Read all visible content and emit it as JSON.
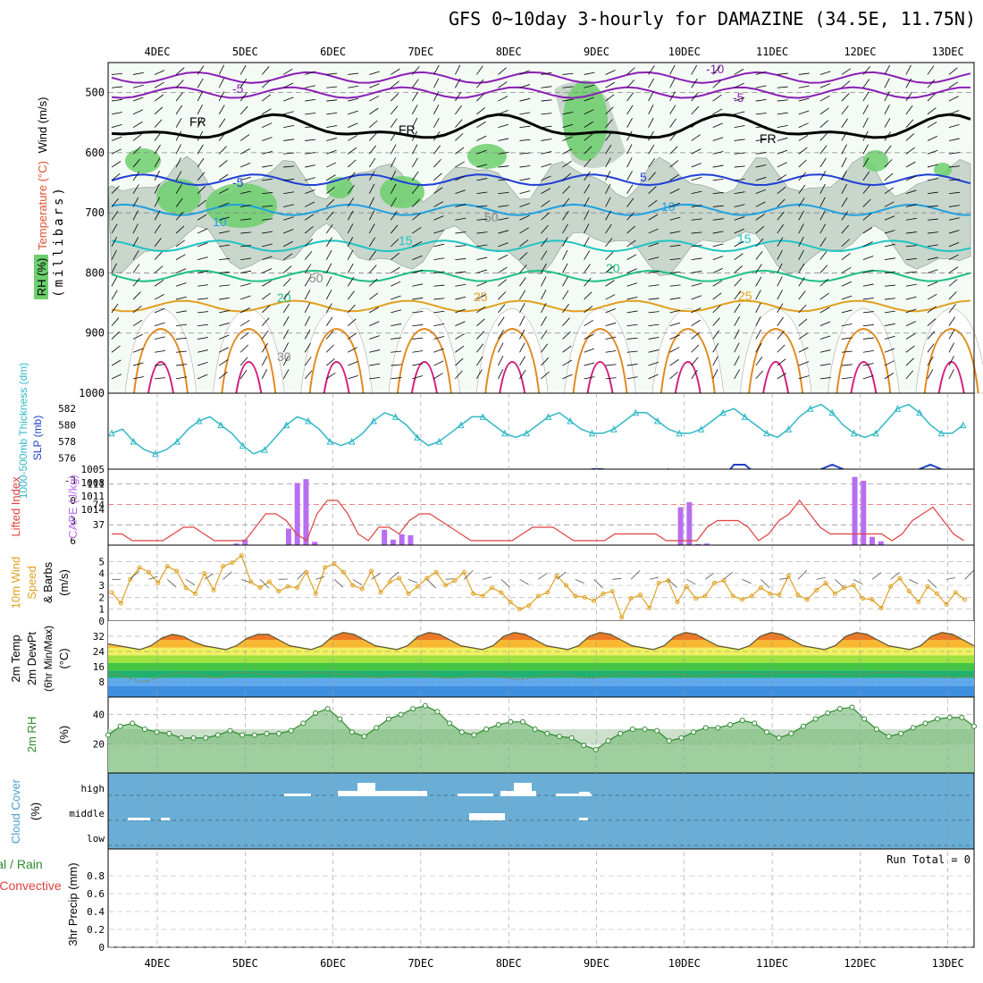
{
  "title": "GFS 0~10day 3-hourly for DAMAZINE (34.5E, 11.75N)",
  "dates": [
    "4DEC",
    "5DEC",
    "6DEC",
    "7DEC",
    "8DEC",
    "9DEC",
    "10DEC",
    "11DEC",
    "12DEC",
    "13DEC"
  ],
  "run_total": "Run Total = 0",
  "chart_data": [
    {
      "type": "heatmap",
      "panel": "upper-air",
      "ylabel": "(millibars)",
      "yticks": [
        500,
        600,
        700,
        800,
        900,
        1000
      ],
      "labels": {
        "wind": "Wind (m/s)",
        "temp": "Temperature (°C)",
        "rh": "RH (%)"
      },
      "contour_labels": [
        "-10",
        "-5",
        "FR",
        "-5",
        "10",
        "15",
        "20",
        "25",
        "50",
        "30"
      ],
      "isotherms": [
        {
          "name": "-10",
          "pressure": 475
        },
        {
          "name": "-5",
          "pressure": 500
        },
        {
          "name": "FR",
          "pressure": 560
        },
        {
          "name": "5",
          "pressure": 645
        },
        {
          "name": "10",
          "pressure": 695
        },
        {
          "name": "15",
          "pressure": 755
        },
        {
          "name": "20",
          "pressure": 805
        },
        {
          "name": "25",
          "pressure": 855
        }
      ]
    },
    {
      "type": "line",
      "panel": "slp-thickness",
      "ylabel_left": "1000-500mb Thickness (dm)",
      "ylabel_right": "SLP (mb)",
      "ticks_left": [
        "576",
        "578",
        "580",
        "582"
      ],
      "ticks_right": [
        "1005",
        "1008",
        "1011",
        "1014"
      ],
      "series": [
        {
          "name": "SLP",
          "values": [
            1008,
            1010,
            1011,
            1011,
            1014,
            1012,
            1009,
            1010,
            1010,
            1011,
            1013,
            1011,
            1008,
            1009,
            1010,
            1012,
            1013,
            1011,
            1008,
            1007,
            1010,
            1012,
            1010,
            1008,
            1006,
            1007,
            1010,
            1012,
            1011,
            1009,
            1006,
            1007,
            1010,
            1012,
            1010,
            1009,
            1009,
            1009,
            1006,
            1008,
            1010,
            1011,
            1009,
            1007,
            1005,
            1005,
            1008,
            1011,
            1011,
            1009,
            1007,
            1005,
            1008,
            1011,
            1012,
            1010,
            1007,
            1004,
            1004,
            1006,
            1009,
            1011,
            1010,
            1009,
            1007,
            1005,
            1004,
            1005,
            1007,
            1008,
            1010,
            1011,
            1010,
            1008,
            1005,
            1004,
            1005,
            1006,
            1008
          ]
        },
        {
          "name": "Thickness",
          "values": [
            579,
            579.5,
            578,
            577,
            576.5,
            577,
            578,
            579.5,
            580.5,
            581,
            580,
            579,
            577.5,
            576.5,
            577,
            578.5,
            580,
            581,
            580.5,
            579.5,
            578,
            577.5,
            578,
            579,
            580.5,
            581.5,
            581,
            580,
            578.5,
            577.5,
            578,
            579,
            580,
            581,
            581,
            580,
            579,
            578.5,
            579,
            580,
            581,
            581.5,
            580.5,
            579.5,
            579,
            579,
            579.5,
            580.5,
            581.5,
            581.5,
            580.5,
            579.5,
            579,
            579,
            579.5,
            580.5,
            581.5,
            582,
            581,
            580,
            579,
            578.5,
            579.5,
            581,
            582,
            582.5,
            581.5,
            580,
            579,
            578.5,
            579,
            580.5,
            582,
            582.5,
            581.5,
            580,
            579,
            579,
            580
          ]
        }
      ]
    },
    {
      "type": "bar",
      "panel": "li-cape",
      "ylabel_left": "Lifted Index",
      "ylabel_right": "CAPE (J/kg)",
      "ticks_left": [
        "-3",
        "0",
        "3",
        "6"
      ],
      "ticks_right": [
        "37",
        "74",
        "111"
      ],
      "cape_values": [
        0,
        0,
        0,
        0,
        0,
        0,
        0,
        0,
        0,
        0,
        0,
        0,
        0,
        0,
        3,
        10,
        0,
        0,
        0,
        0,
        30,
        113,
        120,
        6,
        0,
        0,
        0,
        0,
        0,
        0,
        0,
        28,
        10,
        20,
        18,
        0,
        0,
        0,
        0,
        0,
        0,
        0,
        0,
        0,
        0,
        0,
        0,
        0,
        0,
        0,
        0,
        0,
        0,
        0,
        0,
        0,
        0,
        0,
        0,
        0,
        0,
        0,
        0,
        0,
        0,
        69,
        78,
        2,
        3,
        0,
        0,
        0,
        0,
        0,
        0,
        0,
        0,
        0,
        0,
        0,
        0,
        0,
        0,
        0,
        0,
        124,
        117,
        15,
        7,
        0,
        0,
        0,
        0,
        0,
        0,
        0,
        0,
        0,
        0
      ],
      "li_values": [
        5,
        5,
        6,
        6,
        6,
        6,
        5,
        4,
        4,
        5,
        6,
        6,
        6,
        6,
        4,
        2,
        2,
        3,
        5,
        6,
        2,
        0,
        0,
        2,
        5,
        6,
        4,
        4,
        5,
        3,
        2,
        2,
        3,
        4,
        5,
        6,
        6,
        6,
        6,
        6,
        5,
        4,
        4,
        4,
        5,
        6,
        6,
        6,
        6,
        5,
        5,
        5,
        5,
        5,
        6,
        6,
        6,
        6,
        4,
        3,
        3,
        3,
        4,
        6,
        5,
        3,
        2,
        0,
        2,
        4,
        5,
        5,
        5,
        5,
        5,
        5,
        6,
        5,
        3,
        2,
        1,
        3,
        5,
        6
      ]
    },
    {
      "type": "line",
      "panel": "wind10m",
      "ylabel": "10m Wind Speed & Barbs (m/s)",
      "ticks": [
        "0",
        "1",
        "2",
        "3",
        "4",
        "5"
      ],
      "ylim": [
        0,
        6
      ],
      "values": [
        2.4,
        1.5,
        3.5,
        4.5,
        4.1,
        3.2,
        4.6,
        4.2,
        2.8,
        2.3,
        4.0,
        2.6,
        4.6,
        4.9,
        5.5,
        3.3,
        2.8,
        3.3,
        2.5,
        2.9,
        2.8,
        4.1,
        2.3,
        4.5,
        4.8,
        4.1,
        3.0,
        2.7,
        4.2,
        2.4,
        3.3,
        3.6,
        2.3,
        2.9,
        3.6,
        4.1,
        3.0,
        3.4,
        4.1,
        2.3,
        2.1,
        2.8,
        2.4,
        1.6,
        1.0,
        1.3,
        2.1,
        2.4,
        3.8,
        3.0,
        2.1,
        2.0,
        1.7,
        2.3,
        2.5,
        0.3,
        1.9,
        2.2,
        1.1,
        3.2,
        3.4,
        1.6,
        2.9,
        1.9,
        2.1,
        3.2,
        3.4,
        2.1,
        1.8,
        2.1,
        2.8,
        2.3,
        2.2,
        3.8,
        2.2,
        1.8,
        2.6,
        3.2,
        2.3,
        2.8,
        3.0,
        1.9,
        1.8,
        1.1,
        2.9,
        3.6,
        2.5,
        1.6,
        2.9,
        2.3,
        1.4,
        2.4,
        1.8
      ]
    },
    {
      "type": "area",
      "panel": "temp-dewpt",
      "ylabel": "2m Temp 2m DewPt (6hr Min/Max) (°C)",
      "ticks": [
        "8",
        "16",
        "24",
        "32"
      ],
      "ylim": [
        0,
        40
      ],
      "series": [
        {
          "name": "Temp",
          "values": [
            28,
            27,
            26,
            25,
            27,
            31,
            33,
            32,
            29,
            27,
            26,
            25,
            27,
            31,
            33,
            33,
            30,
            27,
            26,
            25,
            27,
            32,
            34,
            33,
            30,
            27,
            26,
            25,
            27,
            32,
            34,
            33,
            30,
            27,
            26,
            25,
            27,
            32,
            34,
            33,
            30,
            27,
            26,
            25,
            27,
            32,
            34,
            33,
            30,
            27,
            26,
            25,
            27,
            32,
            34,
            33,
            30,
            27,
            26,
            25,
            27,
            32,
            34,
            33,
            30,
            27,
            26,
            25,
            27,
            32,
            34,
            33,
            30,
            27,
            26,
            25,
            27,
            32,
            34,
            33,
            30,
            27
          ]
        },
        {
          "name": "DewPt",
          "values": [
            12,
            12,
            10,
            8,
            9,
            11,
            12,
            13,
            12,
            11,
            10,
            12,
            13,
            13,
            12,
            12,
            11,
            11,
            12,
            13,
            13,
            12,
            12,
            12,
            11,
            10,
            11,
            12,
            12,
            12,
            11,
            10,
            10,
            11,
            12,
            12,
            11,
            10,
            9,
            10,
            11,
            12,
            12,
            11,
            10,
            10,
            11,
            12,
            12,
            11,
            11,
            12,
            12,
            12,
            11,
            11,
            12,
            13,
            13,
            13,
            12,
            12,
            13,
            13,
            13,
            13,
            13,
            12,
            12,
            12,
            12,
            13,
            13,
            13,
            12,
            12,
            11,
            11,
            10,
            11,
            11
          ]
        }
      ]
    },
    {
      "type": "area",
      "panel": "rh2m",
      "ylabel": "2m RH (%)",
      "ticks": [
        "20",
        "40"
      ],
      "values": [
        26,
        32,
        34,
        30,
        28,
        27,
        24,
        24,
        24,
        26,
        29,
        26,
        26,
        27,
        27,
        29,
        34,
        41,
        44,
        37,
        28,
        25,
        31,
        37,
        40,
        44,
        46,
        42,
        34,
        28,
        26,
        30,
        33,
        35,
        35,
        30,
        27,
        25,
        24,
        19,
        16,
        22,
        27,
        30,
        30,
        29,
        22,
        24,
        28,
        31,
        31,
        33,
        36,
        34,
        28,
        24,
        27,
        32,
        37,
        41,
        44,
        45,
        37,
        30,
        25,
        27,
        31,
        34,
        37,
        38,
        38,
        32
      ]
    },
    {
      "type": "bar",
      "panel": "cloud",
      "ylabel": "Cloud Cover (%)",
      "levels": [
        "high",
        "middle",
        "low"
      ]
    },
    {
      "type": "bar",
      "panel": "precip",
      "ylabel": "3hr Precip (mm)",
      "legend": "Total / Rain Convective",
      "ticks": [
        "0",
        "0.2",
        "0.4",
        "0.6",
        "0.8"
      ],
      "ylim": [
        0,
        1
      ],
      "values": []
    }
  ]
}
